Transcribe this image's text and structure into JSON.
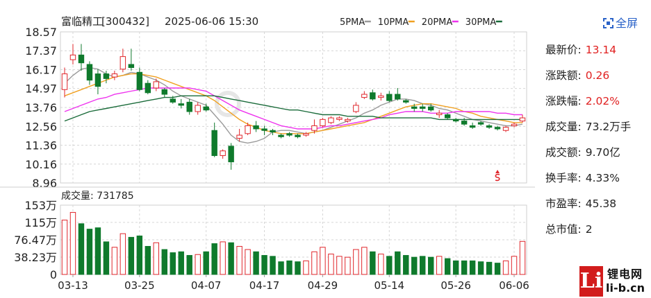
{
  "header": {
    "stock_name": "富临精工",
    "stock_code": "[300432]",
    "datetime": "2025-06-06 15:30",
    "ma_legend": [
      {
        "label": "5PMA",
        "color": "#9a9a9a"
      },
      {
        "label": "10PMA",
        "color": "#f0a020"
      },
      {
        "label": "20PMA",
        "color": "#ee33ee"
      },
      {
        "label": "30PMA",
        "color": "#1a6b3a"
      }
    ]
  },
  "fullscreen_label": "全屏",
  "info": [
    {
      "label": "最新价:",
      "value": "13.14",
      "color": "red"
    },
    {
      "label": "涨跌额:",
      "value": "0.26",
      "color": "red"
    },
    {
      "label": "涨跌幅:",
      "value": "2.02%",
      "color": "red"
    },
    {
      "label": "成交量:",
      "value": "73.2万手",
      "color": "dark"
    },
    {
      "label": "成交额:",
      "value": "9.70亿",
      "color": "dark"
    },
    {
      "label": "换手率:",
      "value": "4.33%",
      "color": "dark"
    },
    {
      "label": "市盈率:",
      "value": "45.38",
      "color": "dark"
    },
    {
      "label": "总市值:",
      "value": "2",
      "color": "dark"
    }
  ],
  "watermark": {
    "cn": "锂电网",
    "url": "li-b.cn",
    "letter": "Li"
  },
  "chart_data": {
    "type": "candlestick",
    "price_ticks": [
      "18.57",
      "17.37",
      "16.17",
      "14.97",
      "13.76",
      "12.56",
      "11.36",
      "10.16",
      "8.96"
    ],
    "ylim": [
      8.96,
      18.57
    ],
    "volume_title": "成交量: 731785",
    "volume_ticks": [
      "153万",
      "115万",
      "76.47万",
      "38.23万",
      "0"
    ],
    "volume_ylim": [
      0,
      153
    ],
    "x_tick_labels": [
      "03-13",
      "03-25",
      "04-07",
      "04-17",
      "04-29",
      "05-14",
      "05-26",
      "06-06"
    ],
    "x_tick_index": [
      1,
      9,
      17,
      24,
      31,
      39,
      47,
      54
    ],
    "candles": [
      [
        14.9,
        15.9,
        14.4,
        16.3,
        1.2
      ],
      [
        16.8,
        17.1,
        16.5,
        17.8,
        1.37
      ],
      [
        17.1,
        16.6,
        16.1,
        17.8,
        1.12
      ],
      [
        16.5,
        15.5,
        15.2,
        16.7,
        1.0
      ],
      [
        15.9,
        15.1,
        14.6,
        16.2,
        1.03
      ],
      [
        15.9,
        15.6,
        15.3,
        16.1,
        0.72
      ],
      [
        15.7,
        15.9,
        15.5,
        16.1,
        0.6
      ],
      [
        16.2,
        17.0,
        16.0,
        17.5,
        0.9
      ],
      [
        16.5,
        16.3,
        16.1,
        17.5,
        0.82
      ],
      [
        16.0,
        14.9,
        14.8,
        16.3,
        0.85
      ],
      [
        15.3,
        14.7,
        14.6,
        15.5,
        0.62
      ],
      [
        15.0,
        15.4,
        14.8,
        15.6,
        0.7
      ],
      [
        14.9,
        14.6,
        14.4,
        15.0,
        0.55
      ],
      [
        14.3,
        14.1,
        14.0,
        14.5,
        0.48
      ],
      [
        14.0,
        13.9,
        13.7,
        14.3,
        0.5
      ],
      [
        14.1,
        13.5,
        13.3,
        14.3,
        0.42
      ],
      [
        13.5,
        13.9,
        13.3,
        14.1,
        0.44
      ],
      [
        13.8,
        13.6,
        13.5,
        14.0,
        0.5
      ],
      [
        12.3,
        10.7,
        10.6,
        12.8,
        0.68
      ],
      [
        10.7,
        11.0,
        10.5,
        11.1,
        0.72
      ],
      [
        11.3,
        10.3,
        9.8,
        11.5,
        0.7
      ],
      [
        11.8,
        12.0,
        11.6,
        12.4,
        0.62
      ],
      [
        12.1,
        12.6,
        12.0,
        12.8,
        0.55
      ],
      [
        12.6,
        12.4,
        12.2,
        12.9,
        0.5
      ],
      [
        12.4,
        12.3,
        12.0,
        12.6,
        0.42
      ],
      [
        12.3,
        12.2,
        12.0,
        12.4,
        0.4
      ],
      [
        12.0,
        11.9,
        11.8,
        12.1,
        0.28
      ],
      [
        12.1,
        12.0,
        11.9,
        12.2,
        0.3
      ],
      [
        12.0,
        11.9,
        11.8,
        12.1,
        0.28
      ],
      [
        12.0,
        12.1,
        11.9,
        12.2,
        0.3
      ],
      [
        12.3,
        12.6,
        12.1,
        13.0,
        0.5
      ],
      [
        12.6,
        13.0,
        12.5,
        13.1,
        0.6
      ],
      [
        12.8,
        13.1,
        12.7,
        13.2,
        0.45
      ],
      [
        13.0,
        13.1,
        12.9,
        13.2,
        0.4
      ],
      [
        12.9,
        13.0,
        12.8,
        13.1,
        0.38
      ],
      [
        13.5,
        13.9,
        13.4,
        14.1,
        0.55
      ],
      [
        14.4,
        14.6,
        14.3,
        14.8,
        0.6
      ],
      [
        14.7,
        14.3,
        14.2,
        14.9,
        0.5
      ],
      [
        14.4,
        14.5,
        14.2,
        14.7,
        0.45
      ],
      [
        14.6,
        14.2,
        14.1,
        14.8,
        0.4
      ],
      [
        14.6,
        14.3,
        14.2,
        15.0,
        0.5
      ],
      [
        14.2,
        14.1,
        14.0,
        14.3,
        0.42
      ],
      [
        13.8,
        13.7,
        13.5,
        14.0,
        0.38
      ],
      [
        13.8,
        13.7,
        13.5,
        14.0,
        0.4
      ],
      [
        13.8,
        13.6,
        13.5,
        14.0,
        0.38
      ],
      [
        13.3,
        13.4,
        13.1,
        13.6,
        0.4
      ],
      [
        13.3,
        13.1,
        13.0,
        13.4,
        0.35
      ],
      [
        13.0,
        12.9,
        12.8,
        13.1,
        0.3
      ],
      [
        12.9,
        12.7,
        12.6,
        13.1,
        0.3
      ],
      [
        12.6,
        12.5,
        12.4,
        12.8,
        0.3
      ],
      [
        12.8,
        12.7,
        12.6,
        12.9,
        0.28
      ],
      [
        12.6,
        12.5,
        12.4,
        12.7,
        0.27
      ],
      [
        12.5,
        12.4,
        12.3,
        12.6,
        0.25
      ],
      [
        12.3,
        12.5,
        12.2,
        12.6,
        0.3
      ],
      [
        12.6,
        12.7,
        12.5,
        12.8,
        0.4
      ],
      [
        12.9,
        13.1,
        12.8,
        13.3,
        0.73
      ]
    ],
    "ma5": [
      15.3,
      15.8,
      16.2,
      16.3,
      16.2,
      15.9,
      15.7,
      15.8,
      16.0,
      15.9,
      15.7,
      15.5,
      15.2,
      14.8,
      14.5,
      14.3,
      14.1,
      13.9,
      13.3,
      12.7,
      12.0,
      11.6,
      11.5,
      11.6,
      11.8,
      12.2,
      12.3,
      12.3,
      12.2,
      12.1,
      12.2,
      12.3,
      12.5,
      12.7,
      12.9,
      13.1,
      13.4,
      13.6,
      13.9,
      14.1,
      14.3,
      14.3,
      14.2,
      14.0,
      13.9,
      13.7,
      13.6,
      13.4,
      13.2,
      13.0,
      12.9,
      12.8,
      12.7,
      12.6,
      12.6,
      12.7
    ],
    "ma10": [
      14.5,
      14.7,
      14.9,
      15.1,
      15.3,
      15.5,
      15.7,
      15.8,
      15.9,
      15.9,
      15.8,
      15.7,
      15.5,
      15.3,
      15.1,
      14.9,
      14.7,
      14.5,
      14.2,
      13.8,
      13.4,
      13.0,
      12.7,
      12.5,
      12.3,
      12.2,
      12.1,
      12.1,
      12.1,
      12.1,
      12.2,
      12.3,
      12.4,
      12.5,
      12.6,
      12.7,
      12.8,
      13.0,
      13.2,
      13.4,
      13.6,
      13.8,
      13.9,
      14.0,
      14.0,
      13.9,
      13.8,
      13.7,
      13.5,
      13.4,
      13.2,
      13.1,
      13.0,
      12.9,
      12.8,
      12.8
    ],
    "ma20": [
      13.5,
      13.7,
      13.9,
      14.1,
      14.3,
      14.4,
      14.6,
      14.7,
      14.8,
      14.9,
      15.0,
      15.0,
      15.0,
      15.0,
      15.0,
      15.0,
      14.9,
      14.8,
      14.5,
      14.2,
      13.9,
      13.6,
      13.4,
      13.2,
      13.0,
      12.8,
      12.6,
      12.5,
      12.4,
      12.4,
      12.4,
      12.5,
      12.6,
      12.6,
      12.7,
      12.8,
      12.9,
      13.0,
      13.1,
      13.3,
      13.4,
      13.5,
      13.5,
      13.5,
      13.4,
      13.4,
      13.4,
      13.5,
      13.5,
      13.5,
      13.5,
      13.5,
      13.4,
      13.4,
      13.3,
      13.3
    ],
    "ma30": [
      12.9,
      13.1,
      13.3,
      13.5,
      13.6,
      13.7,
      13.8,
      13.9,
      14.0,
      14.1,
      14.2,
      14.3,
      14.4,
      14.4,
      14.5,
      14.5,
      14.5,
      14.5,
      14.5,
      14.4,
      14.3,
      14.2,
      14.1,
      14.0,
      13.9,
      13.8,
      13.7,
      13.6,
      13.6,
      13.5,
      13.4,
      13.3,
      13.3,
      13.3,
      13.2,
      13.2,
      13.2,
      13.2,
      13.1,
      13.1,
      13.1,
      13.1,
      13.1,
      13.1,
      13.1,
      13.0,
      13.0,
      13.0,
      13.0,
      13.0,
      13.0,
      13.0,
      13.0,
      13.0,
      13.0,
      13.0
    ]
  }
}
